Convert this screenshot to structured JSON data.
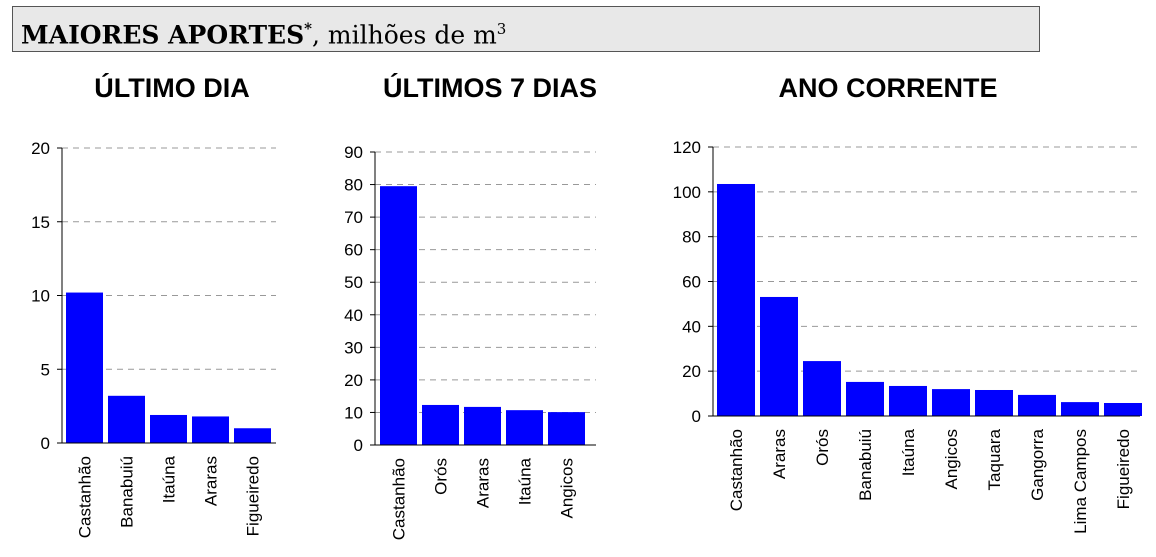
{
  "header": {
    "bold": "MAIORES APORTES",
    "asterisk": "*",
    "rest": ", milhões de m",
    "sup": "3"
  },
  "colors": {
    "bar": "#0000ff",
    "grid": "#999999",
    "axis": "#000000"
  },
  "chart_data": [
    {
      "type": "bar",
      "title": "ÚLTIMO DIA",
      "categories": [
        "Castanhão",
        "Banabuiú",
        "Itaúna",
        "Araras",
        "Figueiredo"
      ],
      "values": [
        10.2,
        3.2,
        1.9,
        1.8,
        1.0
      ],
      "ylim": [
        0,
        20
      ],
      "yticks": [
        0,
        5,
        10,
        15,
        20
      ],
      "grid": "dashed horizontal"
    },
    {
      "type": "bar",
      "title": "ÚLTIMOS 7 DIAS",
      "categories": [
        "Castanhão",
        "Orós",
        "Araras",
        "Itaúna",
        "Angicos"
      ],
      "values": [
        79.5,
        12.3,
        11.7,
        10.7,
        10.1
      ],
      "ylim": [
        0,
        90
      ],
      "yticks": [
        0,
        10,
        20,
        30,
        40,
        50,
        60,
        70,
        80,
        90
      ],
      "grid": "dashed horizontal"
    },
    {
      "type": "bar",
      "title": "ANO CORRENTE",
      "categories": [
        "Castanhão",
        "Araras",
        "Orós",
        "Banabuiú",
        "Itaúna",
        "Angicos",
        "Taquara",
        "Gangorra",
        "Lima Campos",
        "Figueiredo"
      ],
      "values": [
        103.5,
        53.1,
        24.5,
        15.2,
        13.4,
        12.0,
        11.6,
        9.4,
        6.2,
        5.8
      ],
      "ylim": [
        0,
        120
      ],
      "yticks": [
        0,
        20,
        40,
        60,
        80,
        100,
        120
      ],
      "grid": "dashed horizontal"
    }
  ]
}
